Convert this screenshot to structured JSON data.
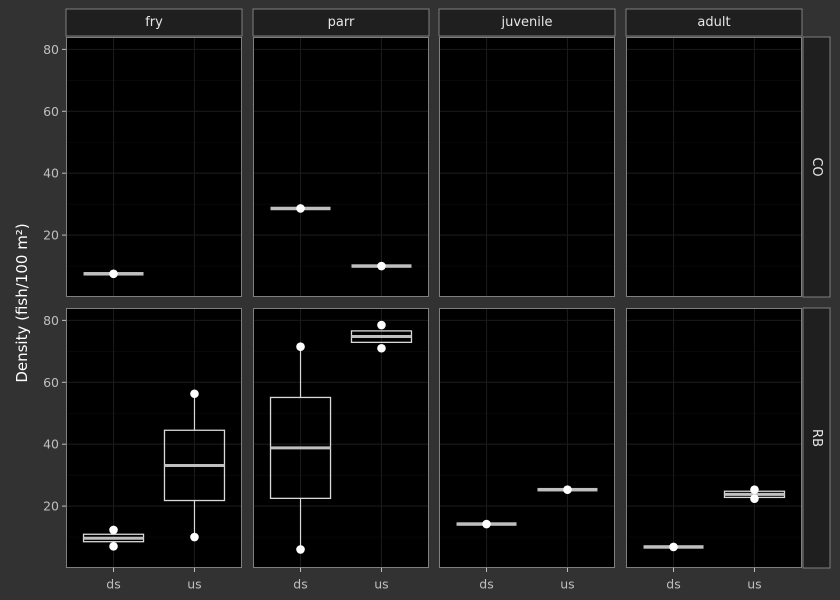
{
  "chart_data": {
    "type": "boxplot",
    "ylabel": "Density (fish/100 m²)",
    "col_facets": [
      "fry",
      "parr",
      "juvenile",
      "adult"
    ],
    "row_facets": [
      "CO",
      "RB"
    ],
    "x_categories": [
      "ds",
      "us"
    ],
    "ylim": [
      0,
      84
    ],
    "y_ticks": [
      20,
      40,
      60,
      80
    ],
    "grid": true,
    "panels": [
      {
        "row": "CO",
        "col": "fry",
        "boxes": [
          {
            "x": "ds",
            "q1": 7.5,
            "median": 7.5,
            "q3": 7.5,
            "points": [
              7.5
            ]
          }
        ]
      },
      {
        "row": "CO",
        "col": "parr",
        "boxes": [
          {
            "x": "ds",
            "q1": 28.6,
            "median": 28.6,
            "q3": 28.6,
            "points": [
              28.6
            ]
          },
          {
            "x": "us",
            "q1": 10.0,
            "median": 10.0,
            "q3": 10.0,
            "points": [
              10.0
            ]
          }
        ]
      },
      {
        "row": "CO",
        "col": "juvenile",
        "boxes": []
      },
      {
        "row": "CO",
        "col": "adult",
        "boxes": []
      },
      {
        "row": "RB",
        "col": "fry",
        "boxes": [
          {
            "x": "ds",
            "q1": 8.5,
            "median": 9.6,
            "q3": 10.9,
            "points": [
              12.3,
              7.0
            ]
          },
          {
            "x": "us",
            "whisker_low": 10.0,
            "q1": 21.8,
            "median": 33.1,
            "q3": 44.5,
            "whisker_high": 56.3,
            "points": [
              56.3,
              10.0
            ]
          }
        ]
      },
      {
        "row": "RB",
        "col": "parr",
        "boxes": [
          {
            "x": "ds",
            "whisker_low": 6.0,
            "q1": 22.5,
            "median": 38.8,
            "q3": 55.1,
            "whisker_high": 71.5,
            "points": [
              71.5,
              6.0
            ]
          },
          {
            "x": "us",
            "q1": 72.9,
            "median": 74.8,
            "q3": 76.6,
            "points": [
              78.5,
              71.0
            ]
          }
        ]
      },
      {
        "row": "RB",
        "col": "juvenile",
        "boxes": [
          {
            "x": "ds",
            "q1": 14.2,
            "median": 14.2,
            "q3": 14.2,
            "points": [
              14.2
            ]
          },
          {
            "x": "us",
            "q1": 25.3,
            "median": 25.3,
            "q3": 25.3,
            "points": [
              25.3
            ]
          }
        ]
      },
      {
        "row": "RB",
        "col": "adult",
        "boxes": [
          {
            "x": "ds",
            "q1": 6.8,
            "median": 6.8,
            "q3": 6.8,
            "points": [
              6.8
            ]
          },
          {
            "x": "us",
            "q1": 22.8,
            "median": 23.8,
            "q3": 24.8,
            "points": [
              25.3,
              22.4
            ]
          }
        ]
      }
    ]
  },
  "colors": {
    "background": "#323232",
    "panel": "#000000",
    "panel_border": "#7f7f7f",
    "strip": "#1f1f1f",
    "grid_major": "#1a1a1a",
    "grid_minor": "#0d0d0d",
    "box_line": "#d9d9d9",
    "median_line": "#bfbfbf",
    "point": "#ffffff"
  }
}
